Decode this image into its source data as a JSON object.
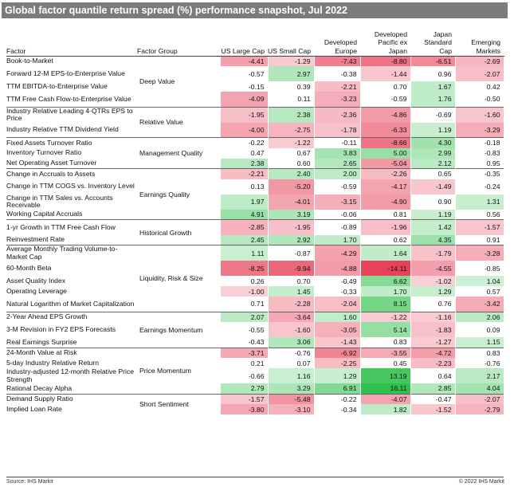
{
  "title": "Global factor quantile return spread (%) performance snapshot, Jul 2022",
  "columns": {
    "factor": "Factor",
    "group": "Factor Group",
    "regions": [
      "US Large Cap",
      "US Small Cap",
      "Developed Europe",
      "Developed Pacific ex Japan",
      "Japan Standard Cap",
      "Emerging Markets"
    ]
  },
  "groups": [
    {
      "name": "Deep Value",
      "rows": [
        {
          "factor": "Book-to-Market",
          "values": [
            "-4.41",
            "-1.29",
            "-7.43",
            "-8.80",
            "-6.51",
            "-2.69"
          ]
        },
        {
          "factor": "Forward 12-M EPS-to-Enterprise Value",
          "values": [
            "-0.57",
            "2.97",
            "-0.38",
            "-1.44",
            "0.96",
            "-2.07"
          ]
        },
        {
          "factor": "TTM EBITDA-to-Enterprise Value",
          "values": [
            "-0.15",
            "0.39",
            "-2.21",
            "0.70",
            "1.67",
            "0.42"
          ]
        },
        {
          "factor": "TTM Free Cash Flow-to-Enterprise Value",
          "values": [
            "-4.09",
            "0.11",
            "-3.23",
            "-0.59",
            "1.76",
            "-0.50"
          ]
        }
      ]
    },
    {
      "name": "Relative Value",
      "rows": [
        {
          "factor": "Industry Relative Leading 4-QTRs EPS to Price",
          "values": [
            "-1.95",
            "2.38",
            "-2.36",
            "-4.86",
            "-0.69",
            "-1.60"
          ]
        },
        {
          "factor": "Industry Relative TTM Dividend Yield",
          "values": [
            "-4.00",
            "-2.75",
            "-1.78",
            "-6.33",
            "1.19",
            "-3.29"
          ]
        }
      ]
    },
    {
      "name": "Management Quality",
      "rows": [
        {
          "factor": "Fixed Assets Turnover Ratio",
          "values": [
            "-0.22",
            "-1.22",
            "-0.11",
            "-8.66",
            "4.30",
            "-0.18"
          ]
        },
        {
          "factor": "Inventory Turnover Ratio",
          "values": [
            "0.47",
            "0.67",
            "3.83",
            "5.00",
            "2.99",
            "-0.83"
          ]
        },
        {
          "factor": "Net Operating Asset Turnover",
          "values": [
            "2.38",
            "0.60",
            "2.65",
            "-5.04",
            "2.12",
            "0.95"
          ]
        }
      ]
    },
    {
      "name": "Earnings Quality",
      "rows": [
        {
          "factor": "Change in Accruals to Assets",
          "values": [
            "-2.21",
            "2.40",
            "2.00",
            "-2.26",
            "0.65",
            "-0.35"
          ]
        },
        {
          "factor": "Change in TTM COGS vs. Inventory Level",
          "values": [
            "0.13",
            "-5.20",
            "-0.59",
            "-4.17",
            "-1.49",
            "-0.24"
          ]
        },
        {
          "factor": "Change in TTM Sales vs. Accounts Receivable",
          "values": [
            "1.97",
            "-4.01",
            "-3.15",
            "-4.90",
            "0.90",
            "1.31"
          ]
        },
        {
          "factor": "Working Capital Accruals",
          "values": [
            "4.91",
            "3.19",
            "-0.06",
            "0.81",
            "1.19",
            "0.56"
          ]
        }
      ]
    },
    {
      "name": "Historical Growth",
      "rows": [
        {
          "factor": "1-yr Growth in TTM Free Cash Flow",
          "values": [
            "-2.85",
            "-1.95",
            "-0.89",
            "-1.96",
            "1.42",
            "-1.57"
          ]
        },
        {
          "factor": "Reinvestment Rate",
          "values": [
            "2.45",
            "2.92",
            "1.70",
            "0.62",
            "4.35",
            "0.91"
          ]
        }
      ]
    },
    {
      "name": "Liquidity, Risk & Size",
      "rows": [
        {
          "factor": "Average Monthly Trading Volume-to-Market Cap",
          "values": [
            "1.11",
            "-0.87",
            "-4.29",
            "1.64",
            "-1.79",
            "-3.28"
          ]
        },
        {
          "factor": "60-Month Beta",
          "values": [
            "-8.25",
            "-9.94",
            "-4.88",
            "-14.11",
            "-4.55",
            "-0.85"
          ]
        },
        {
          "factor": "Asset Quality Index",
          "values": [
            "0.26",
            "0.70",
            "-0.49",
            "6.62",
            "-1.02",
            "1.04"
          ]
        },
        {
          "factor": "Operating Leverage",
          "values": [
            "-1.00",
            "1.45",
            "-0.33",
            "1.70",
            "1.29",
            "0.57"
          ]
        },
        {
          "factor": "Natural Logarithm of Market Capitalization",
          "values": [
            "0.71",
            "-2.28",
            "-2.04",
            "8.15",
            "0.76",
            "-3.42"
          ]
        }
      ]
    },
    {
      "name": "Earnings Momentum",
      "rows": [
        {
          "factor": "2-Year Ahead EPS Growth",
          "values": [
            "2.07",
            "-3.64",
            "1.60",
            "-1.22",
            "-1.16",
            "2.06"
          ]
        },
        {
          "factor": "3-M Revision in FY2 EPS Forecasts",
          "values": [
            "-0.55",
            "-1.60",
            "-3.05",
            "5.14",
            "-1.83",
            "0.09"
          ]
        },
        {
          "factor": "Real Earnings Surprise",
          "values": [
            "-0.43",
            "3.06",
            "-1.43",
            "0.83",
            "-1.27",
            "1.15"
          ]
        }
      ]
    },
    {
      "name": "Price Momentum",
      "rows": [
        {
          "factor": "24-Month Value at Risk",
          "values": [
            "-3.71",
            "-0.76",
            "-6.92",
            "-3.55",
            "-4.72",
            "0.83"
          ]
        },
        {
          "factor": "5-day Industry Relative Return",
          "values": [
            "0.21",
            "0.07",
            "-2.25",
            "0.45",
            "-2.23",
            "-0.76"
          ]
        },
        {
          "factor": "Industry-adjusted 12-month Relative Price Strength",
          "values": [
            "-0.66",
            "1.16",
            "1.29",
            "13.19",
            "0.64",
            "2.17"
          ]
        },
        {
          "factor": "Rational Decay Alpha",
          "values": [
            "2.79",
            "3.29",
            "6.91",
            "16.11",
            "2.85",
            "4.04"
          ]
        }
      ]
    },
    {
      "name": "Short Sentiment",
      "rows": [
        {
          "factor": "Demand Supply Ratio",
          "values": [
            "-1.57",
            "-5.48",
            "-0.22",
            "-4.07",
            "-0.47",
            "-2.07"
          ]
        },
        {
          "factor": "Implied Loan Rate",
          "values": [
            "-3.80",
            "-3.10",
            "-0.34",
            "1.82",
            "-1.52",
            "-2.79"
          ]
        }
      ]
    }
  ],
  "colors": {
    "negative": "#e8425a",
    "positive": "#2ec04a",
    "neutral": "#ffffff",
    "title_bg": "#7b7b7b"
  },
  "footer": {
    "source": "Source: IHS Markit",
    "copyright": "© 2022 IHS Markit"
  }
}
